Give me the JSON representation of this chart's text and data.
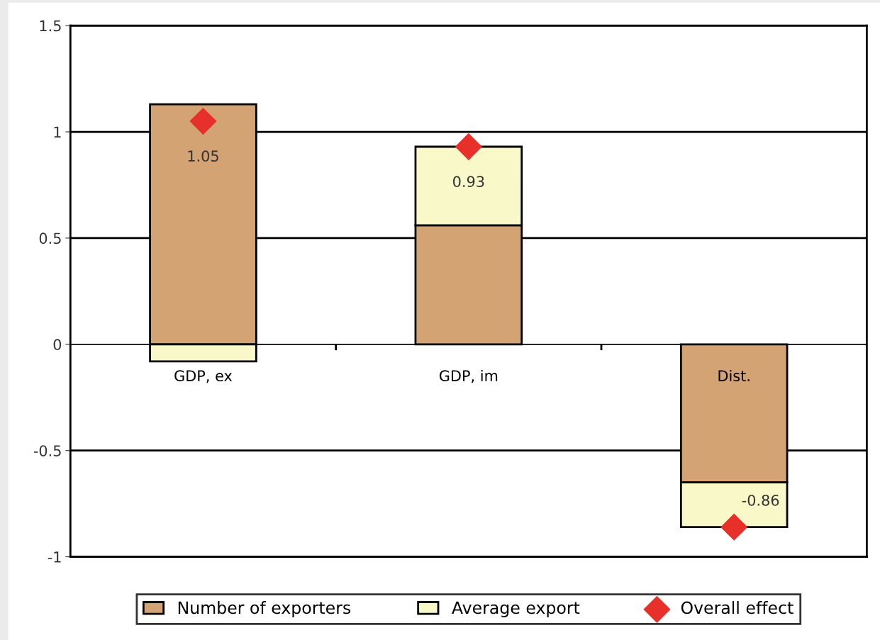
{
  "chart_data": {
    "type": "bar",
    "stacked": true,
    "categories": [
      "GDP, ex",
      "GDP, im",
      "Dist."
    ],
    "series": [
      {
        "name": "Number of exporters",
        "color": "#d4a373",
        "values": [
          1.13,
          0.56,
          -0.65
        ]
      },
      {
        "name": "Average export",
        "color": "#f8f8c8",
        "values": [
          -0.08,
          0.37,
          -0.21
        ]
      },
      {
        "name": "Overall effect",
        "type": "scatter",
        "color": "#e8302a",
        "x": [
          "GDP, ex",
          "GDP, im",
          "Dist."
        ],
        "values": [
          1.05,
          0.93,
          -0.86
        ],
        "value_labels": [
          "1.05",
          "0.93",
          "-0.86"
        ]
      }
    ],
    "ylim": [
      -1,
      1.5
    ],
    "yticks": [
      -1,
      -0.5,
      0,
      0.5,
      1,
      1.5
    ],
    "grid": "y",
    "legend": "bottom",
    "marker": "diamond"
  }
}
